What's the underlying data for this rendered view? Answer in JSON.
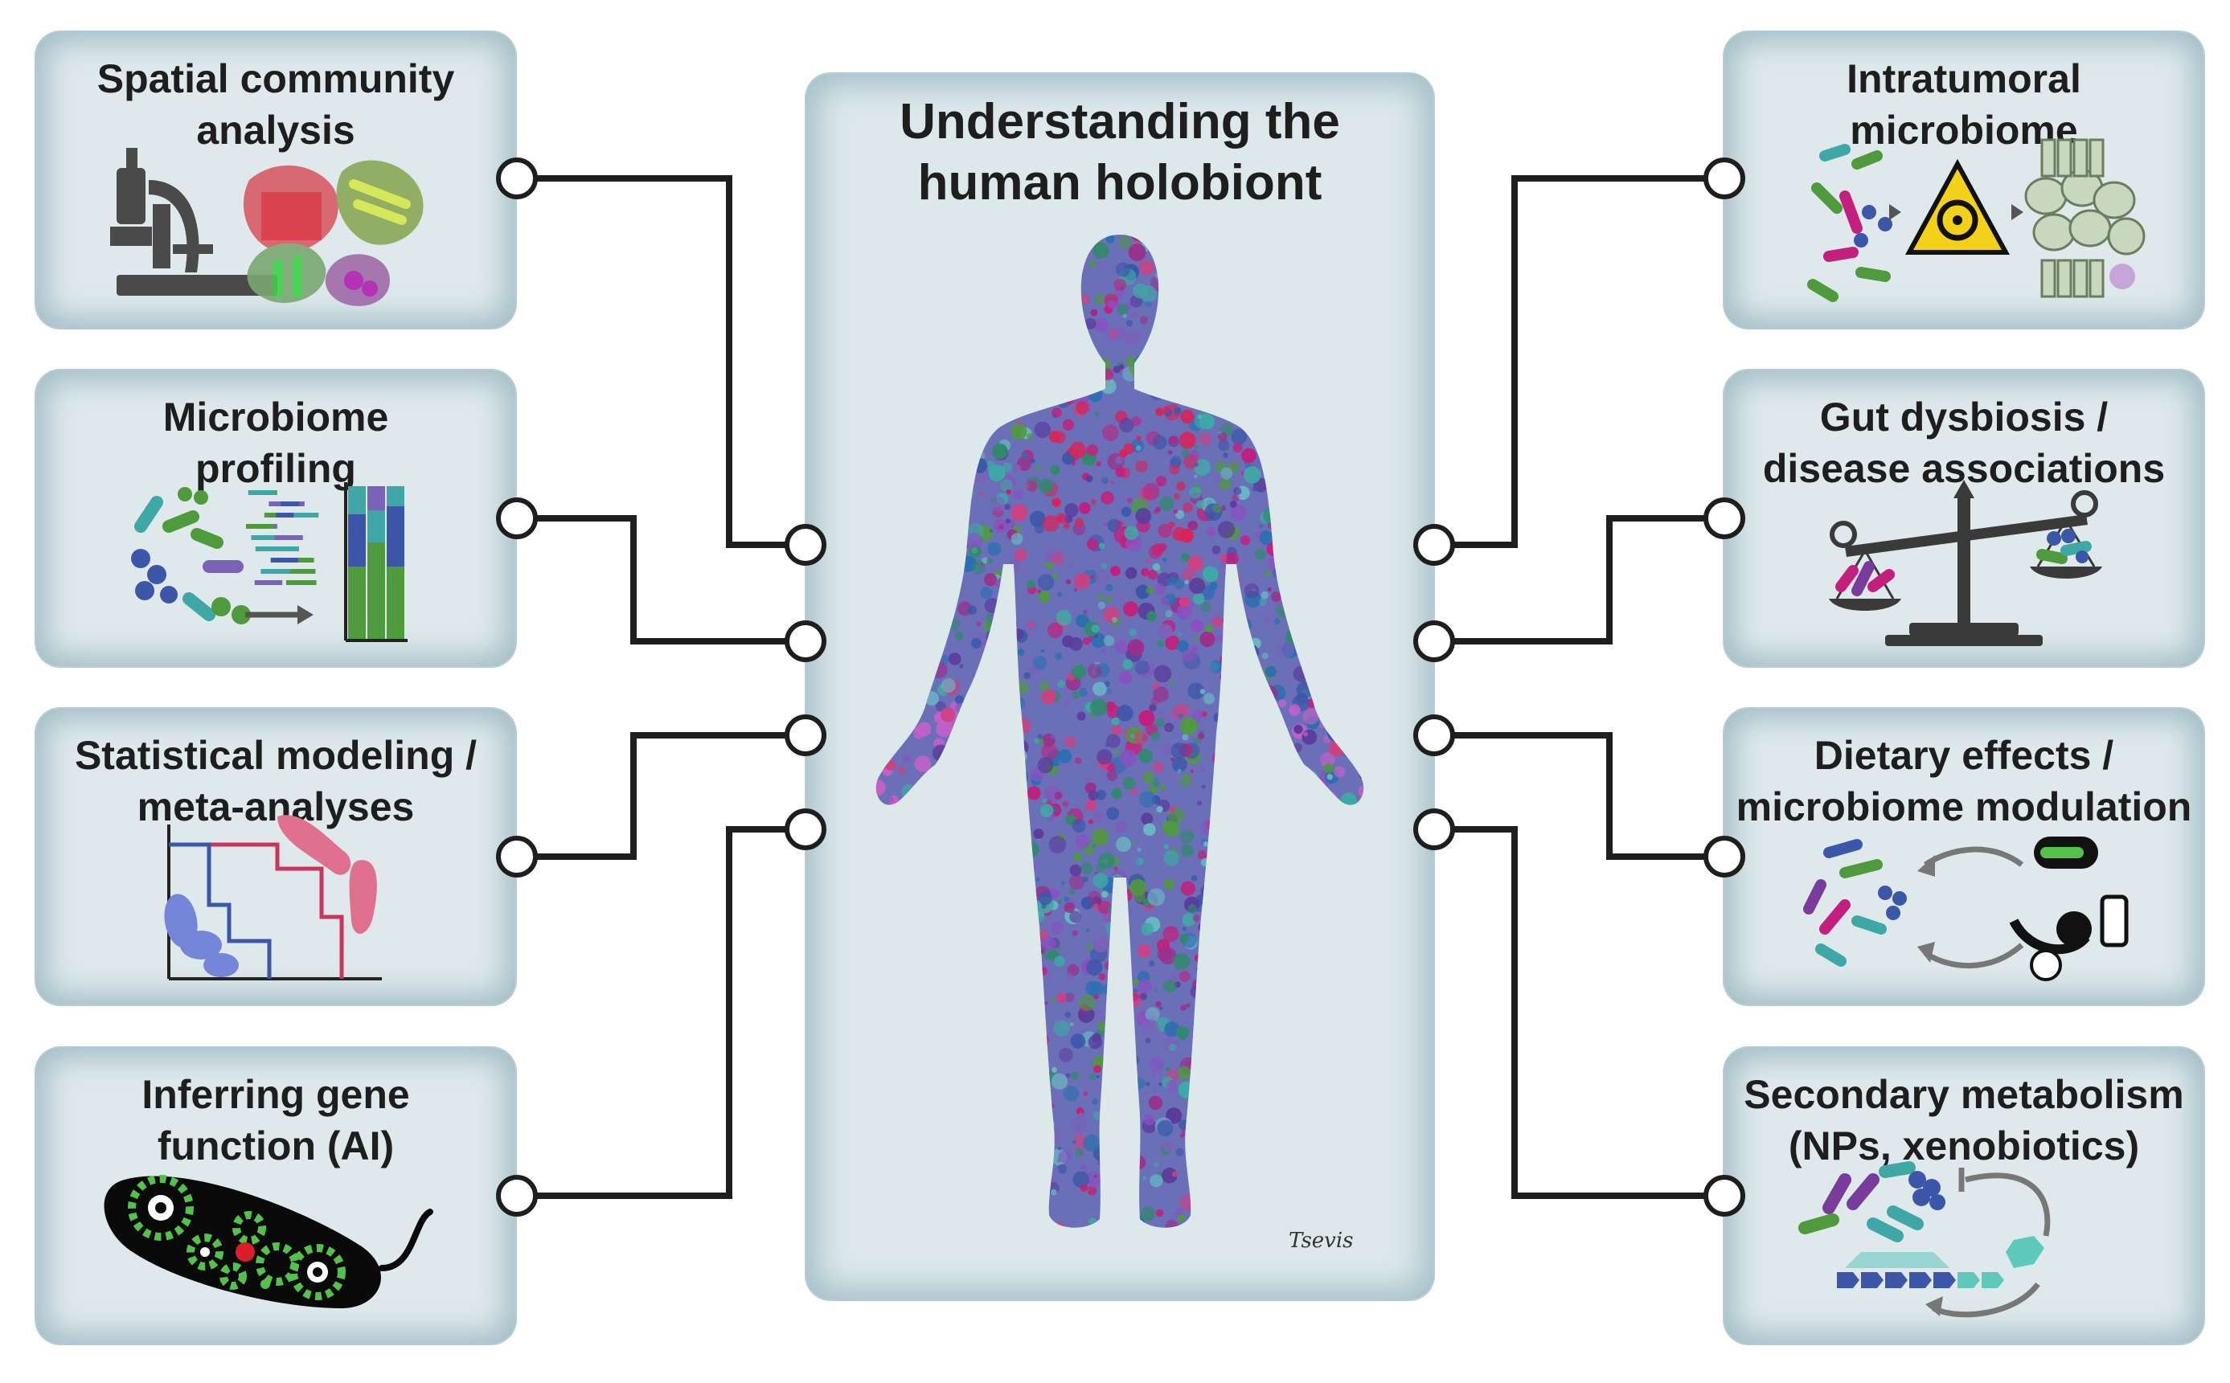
{
  "center": {
    "title_line1": "Understanding the",
    "title_line2": "human holobiont",
    "signature": "Tsevis"
  },
  "left_panels": [
    {
      "line1": "Spatial community",
      "line2": "analysis",
      "icon": "microscope-icon"
    },
    {
      "line1": "Microbiome",
      "line2": "profiling",
      "icon": "sequencing-bars-icon"
    },
    {
      "line1": "Statistical modeling /",
      "line2": "meta-analyses",
      "icon": "step-curve-icon"
    },
    {
      "line1": "Inferring gene",
      "line2": "function (AI)",
      "icon": "bacterium-gears-icon"
    }
  ],
  "right_panels": [
    {
      "line1": "Intratumoral",
      "line2": "microbiome",
      "icon": "biohazard-icon"
    },
    {
      "line1": "Gut dysbiosis /",
      "line2": "disease associations",
      "icon": "balance-scale-icon"
    },
    {
      "line1": "Dietary effects /",
      "line2": "microbiome modulation",
      "icon": "food-cycle-icon"
    },
    {
      "line1": "Secondary metabolism",
      "line2": "(NPs, xenobiotics)",
      "icon": "gene-cluster-icon"
    }
  ],
  "colors": {
    "panel_bg": "#dfe9ec",
    "panel_edge": "#9fbcc4",
    "connector": "#1e1e1e",
    "green": "#4f9a3c",
    "teal": "#3fa8a6",
    "blue": "#3c57a8",
    "magenta": "#c2207c",
    "purple": "#7a3c9c",
    "red": "#d81f3a"
  }
}
